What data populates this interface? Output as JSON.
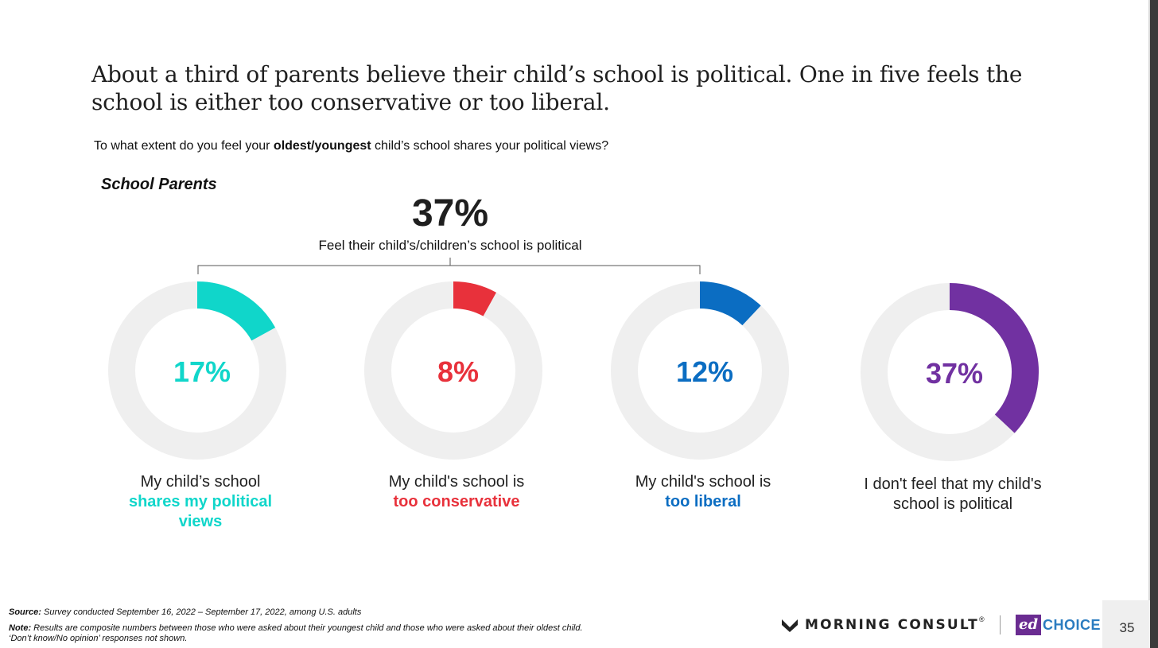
{
  "title": "About a third of parents believe their child’s school is political. One in five feels the school is either too conservative or too liberal.",
  "question": {
    "prefix": "To what extent do you feel your ",
    "bold": "oldest/youngest",
    "suffix": " child’s school shares your political views?"
  },
  "group_label": "School Parents",
  "summary": {
    "value": "37%",
    "label": "Feel their child’s/children’s school is political"
  },
  "colors": {
    "track": "#efefef",
    "teal": "#10d6ca",
    "red": "#e8313b",
    "blue": "#0b6dc2",
    "purple": "#7131a1",
    "bracket": "#555555"
  },
  "chart_data": {
    "type": "donut",
    "title": "",
    "series": [
      {
        "name": "My child’s school shares my political views",
        "value": 17,
        "display": "17%",
        "label_plain": "My child’s school",
        "label_highlight": "shares my political views",
        "color": "#10d6ca"
      },
      {
        "name": "My child's school is too conservative",
        "value": 8,
        "display": "8%",
        "label_plain": "My child's school is",
        "label_highlight": "too conservative",
        "color": "#e8313b"
      },
      {
        "name": "My child's school is too liberal",
        "value": 12,
        "display": "12%",
        "label_plain": "My child's school is",
        "label_highlight": "too liberal",
        "color": "#0b6dc2"
      },
      {
        "name": "I don't feel that my child's school is political",
        "value": 37,
        "display": "37%",
        "label_plain": "I don't feel that my child's school is political",
        "label_highlight": "",
        "color": "#7131a1"
      }
    ]
  },
  "footer": {
    "source_label": "Source:",
    "source_text": " Survey conducted September 16, 2022 – September 17, 2022, among U.S. adults",
    "note_label": "Note:",
    "note_text": " Results are composite numbers between those who were asked about their youngest child and those who were asked about their oldest child.",
    "note_line2": "‘Don’t know/No opinion’ responses not shown."
  },
  "logos": {
    "morning_consult": "MORNING CONSULT",
    "trademark": "®",
    "ed": "ed",
    "choice": "CHOICE"
  },
  "page_number": "35"
}
